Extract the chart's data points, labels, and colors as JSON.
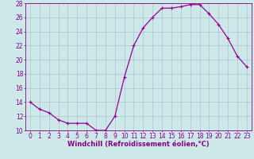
{
  "x": [
    0,
    1,
    2,
    3,
    4,
    5,
    6,
    7,
    8,
    9,
    10,
    11,
    12,
    13,
    14,
    15,
    16,
    17,
    18,
    19,
    20,
    21,
    22,
    23
  ],
  "y": [
    14,
    13,
    12.5,
    11.5,
    11,
    11,
    11,
    10,
    10,
    12,
    17.5,
    22,
    24.5,
    26,
    27.3,
    27.3,
    27.5,
    27.8,
    27.8,
    26.5,
    25,
    23,
    20.5,
    19
  ],
  "line_color": "#990099",
  "marker": "+",
  "marker_size": 3.5,
  "line_width": 0.9,
  "bg_color": "#cce8e8",
  "grid_color": "#aabbcc",
  "xlabel": "Windchill (Refroidissement éolien,°C)",
  "xlabel_color": "#880088",
  "ylim": [
    10,
    28
  ],
  "xlim": [
    -0.5,
    23.5
  ],
  "yticks": [
    10,
    12,
    14,
    16,
    18,
    20,
    22,
    24,
    26,
    28
  ],
  "xticks": [
    0,
    1,
    2,
    3,
    4,
    5,
    6,
    7,
    8,
    9,
    10,
    11,
    12,
    13,
    14,
    15,
    16,
    17,
    18,
    19,
    20,
    21,
    22,
    23
  ],
  "tick_color": "#880088",
  "spine_color": "#880088",
  "tick_fontsize": 5.5,
  "xlabel_fontsize": 6.0
}
